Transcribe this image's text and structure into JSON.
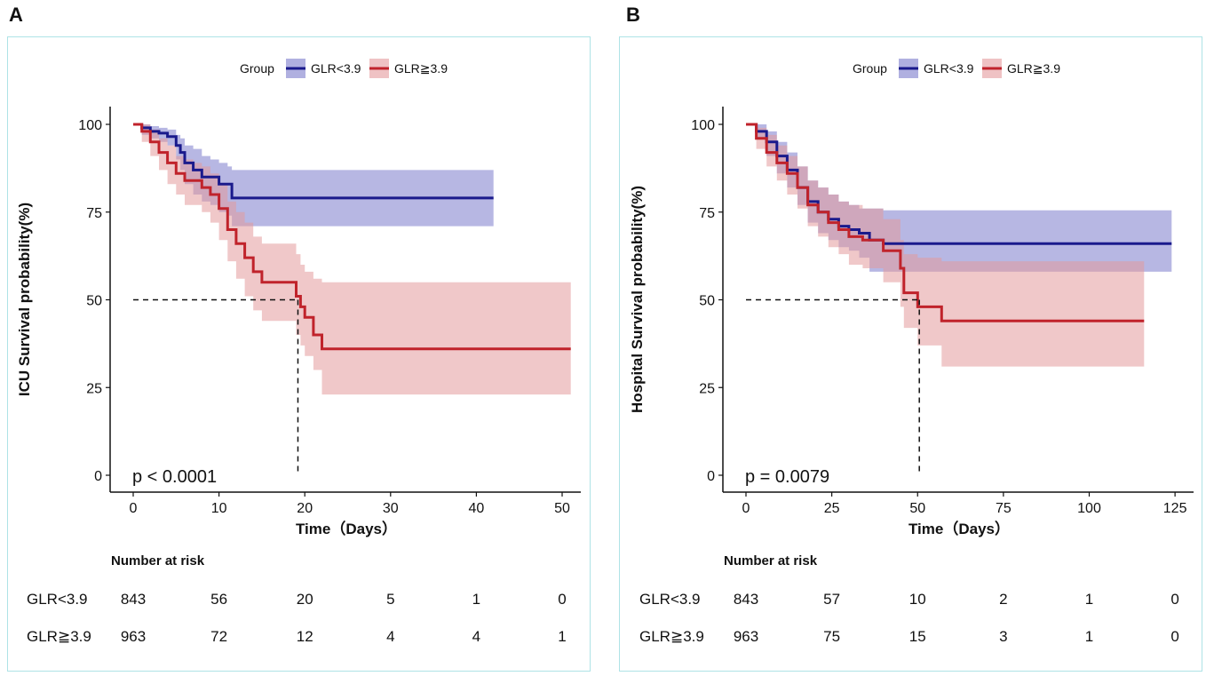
{
  "chart_data": [
    {
      "panel": "A",
      "type": "line",
      "subtype": "kaplan-meier",
      "legend_title": "Group",
      "legend_position": "top",
      "ylabel": "ICU Survival probability(%)",
      "xlabel": "Time（Days）",
      "xlim": [
        0,
        51
      ],
      "ylim": [
        0,
        100
      ],
      "xticks": [
        0,
        10,
        20,
        30,
        40,
        50
      ],
      "yticks": [
        0,
        25,
        50,
        75,
        100
      ],
      "pvalue": "p < 0.0001",
      "median_line": {
        "y": 50,
        "x": 19.2
      },
      "series": [
        {
          "name": "GLR<3.9",
          "color": "#1a1a8c",
          "band_color": "#7b7bcc",
          "times": [
            0,
            1,
            2,
            3,
            4,
            5,
            5.5,
            6,
            7,
            8,
            9,
            10,
            11,
            11.5,
            12,
            42
          ],
          "surv": [
            100,
            99,
            98,
            97.5,
            96.5,
            94,
            92,
            89,
            87,
            85,
            85,
            83,
            83,
            79,
            79,
            79
          ],
          "upper": [
            100,
            100,
            99.5,
            99,
            98.5,
            97,
            96,
            94,
            93,
            91,
            90,
            89,
            88,
            87,
            87,
            87
          ],
          "lower": [
            100,
            97,
            96,
            95,
            94,
            90,
            87,
            83,
            80,
            78,
            77,
            75,
            74,
            71,
            71,
            71
          ]
        },
        {
          "name": "GLR≧3.9",
          "color": "#c0232b",
          "band_color": "#e49a9d",
          "times": [
            0,
            1,
            2,
            3,
            4,
            5,
            6,
            7,
            8,
            9,
            10,
            11,
            12,
            13,
            14,
            15,
            17,
            19,
            19.5,
            20,
            21,
            22,
            51
          ],
          "surv": [
            100,
            98,
            95,
            92,
            89,
            86,
            84,
            84,
            82,
            80,
            76,
            70,
            66,
            62,
            58,
            55,
            55,
            51,
            48,
            45,
            40,
            36,
            36
          ],
          "upper": [
            100,
            100,
            98.5,
            96,
            94,
            91,
            90,
            89,
            88,
            86,
            83,
            78,
            75,
            72,
            68,
            66,
            66,
            63,
            60,
            58,
            56,
            55,
            55
          ],
          "lower": [
            100,
            95,
            91,
            87,
            83,
            80,
            77,
            77,
            75,
            72,
            67,
            61,
            56,
            51,
            47,
            44,
            44,
            40,
            37,
            34,
            30,
            23,
            23
          ]
        }
      ],
      "risk_table": {
        "title": "Number at risk",
        "rows": [
          {
            "label": "GLR<3.9",
            "values": [
              843,
              56,
              20,
              5,
              1,
              0
            ]
          },
          {
            "label": "GLR≧3.9",
            "values": [
              963,
              72,
              12,
              4,
              4,
              1
            ]
          }
        ]
      }
    },
    {
      "panel": "B",
      "type": "line",
      "subtype": "kaplan-meier",
      "legend_title": "Group",
      "legend_position": "top",
      "ylabel": "Hospital Survival probability(%)",
      "xlabel": "Time（Days）",
      "xlim": [
        0,
        127
      ],
      "ylim": [
        0,
        100
      ],
      "xticks": [
        0,
        25,
        50,
        75,
        100,
        125
      ],
      "yticks": [
        0,
        25,
        50,
        75,
        100
      ],
      "pvalue": "p = 0.0079",
      "median_line": {
        "y": 50,
        "x": 50.5
      },
      "series": [
        {
          "name": "GLR<3.9",
          "color": "#1a1a8c",
          "band_color": "#7b7bcc",
          "times": [
            0,
            3,
            6,
            9,
            12,
            15,
            18,
            21,
            24,
            27,
            30,
            33,
            36,
            40,
            124
          ],
          "surv": [
            100,
            98,
            95,
            91,
            87,
            82,
            78,
            75,
            73,
            71,
            70,
            69,
            67,
            66,
            66
          ],
          "upper": [
            100,
            100,
            98,
            95,
            92,
            88,
            84,
            82,
            80,
            78,
            77,
            76,
            76,
            75.5,
            75.5
          ],
          "lower": [
            100,
            96,
            91,
            86,
            82,
            77,
            72,
            69,
            67,
            65,
            64,
            62,
            58,
            58,
            58
          ]
        },
        {
          "name": "GLR≧3.9",
          "color": "#c0232b",
          "band_color": "#e49a9d",
          "times": [
            0,
            3,
            6,
            9,
            12,
            15,
            18,
            21,
            24,
            27,
            30,
            34,
            40,
            45,
            46,
            50,
            57,
            116
          ],
          "surv": [
            100,
            96,
            92,
            89,
            86,
            82,
            77,
            75,
            72,
            70,
            68,
            67,
            64,
            59,
            52,
            48,
            44,
            44
          ],
          "upper": [
            100,
            99,
            97,
            94,
            91,
            88,
            84,
            82,
            80,
            78,
            77,
            76,
            73,
            67,
            63,
            62,
            61,
            61
          ],
          "lower": [
            100,
            93,
            88,
            84,
            80,
            76,
            71,
            68,
            65,
            63,
            60,
            59,
            55,
            48,
            42,
            37,
            31,
            31
          ]
        }
      ],
      "risk_table": {
        "title": "Number at risk",
        "rows": [
          {
            "label": "GLR<3.9",
            "values": [
              843,
              57,
              10,
              2,
              1,
              0
            ]
          },
          {
            "label": "GLR≧3.9",
            "values": [
              963,
              75,
              15,
              3,
              1,
              0
            ]
          }
        ]
      }
    }
  ]
}
